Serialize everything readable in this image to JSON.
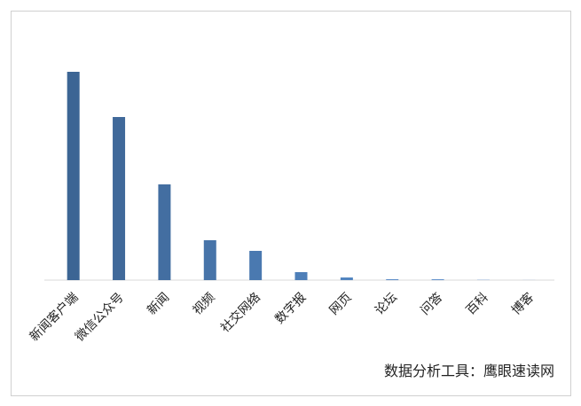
{
  "chart_data": {
    "type": "bar",
    "categories": [
      "新闻客户端",
      "微信公众号",
      "新闻",
      "视频",
      "社交网络",
      "数字报",
      "网页",
      "论坛",
      "问答",
      "百科",
      "博客"
    ],
    "values": [
      235,
      184,
      108,
      45,
      33,
      9,
      3,
      1,
      1,
      0.3,
      0.1
    ],
    "colors": [
      "#3c6594",
      "#40699a",
      "#436ea1",
      "#4774a9",
      "#4a79b0",
      "#4e7fb8",
      "#5285c0",
      "#5a8bc6",
      "#6291cb",
      "#6a97d0",
      "#729dd5"
    ],
    "ylim": [
      0,
      250
    ]
  },
  "footer": "数据分析工具：鹰眼速读网"
}
